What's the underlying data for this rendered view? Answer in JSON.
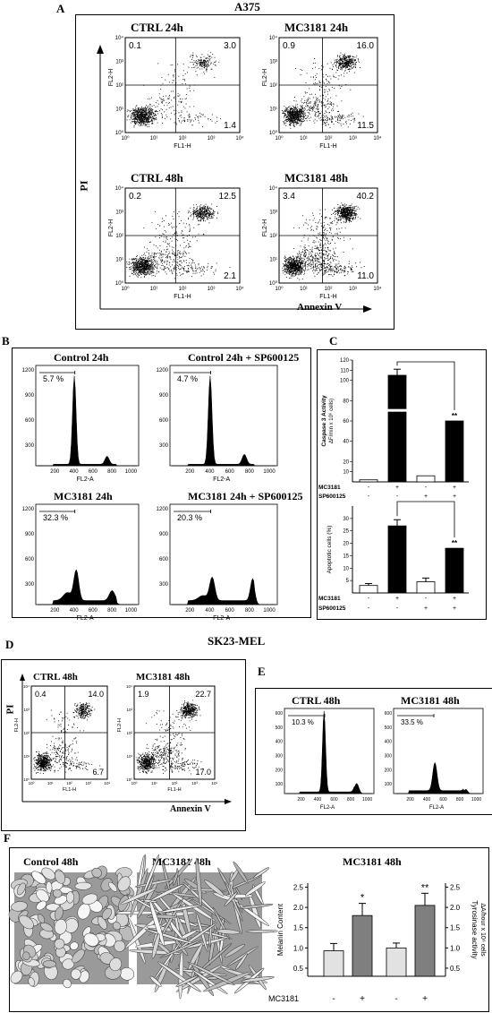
{
  "figure": {
    "panelA": {
      "label": "A",
      "title": "A375",
      "y_axis": "PI",
      "x_axis": "Annexin V",
      "plots": [
        {
          "title": "CTRL 24h",
          "q_ul": "0.1",
          "q_ur": "3.0",
          "q_lr": "1.4",
          "ylabel": "FL2-H",
          "xlabel": "FL1-H",
          "level": 1
        },
        {
          "title": "MC3181 24h",
          "q_ul": "0.9",
          "q_ur": "16.0",
          "q_lr": "11.5",
          "ylabel": "FL2-H",
          "xlabel": "FL1-H",
          "level": 2
        },
        {
          "title": "CTRL 48h",
          "q_ul": "0.2",
          "q_ur": "12.5",
          "q_lr": "2.1",
          "ylabel": "FL2-H",
          "xlabel": "FL1-H",
          "level": 2
        },
        {
          "title": "MC3181 48h",
          "q_ul": "3.4",
          "q_ur": "40.2",
          "q_lr": "11.0",
          "ylabel": "FL2-H",
          "xlabel": "FL1-H",
          "level": 3
        }
      ],
      "ticks": [
        "10⁰",
        "10¹",
        "10²",
        "10³",
        "10⁴"
      ]
    },
    "panelB": {
      "label": "B",
      "xlabel": "FL2-A",
      "y_ticks": [
        "1200",
        "900",
        "600",
        "300"
      ],
      "x_ticks": [
        "200",
        "400",
        "600",
        "800",
        "1000"
      ],
      "histos": [
        {
          "title": "Control 24h",
          "pct": "5.7 %"
        },
        {
          "title": "Control 24h + SP600125",
          "pct": "4.7 %"
        },
        {
          "title": "MC3181 24h",
          "pct": "32.3 %"
        },
        {
          "title": "MC3181 24h + SP600125",
          "pct": "20.3 %"
        }
      ]
    },
    "panelC": {
      "label": "C",
      "caspase": {
        "ylabel1": "Caspase 3 Activity",
        "ylabel2": "ΔF/min x 10⁶ cells)",
        "ticks": [
          "120",
          "110",
          "100",
          "80",
          "60",
          "40",
          "20",
          "10"
        ],
        "values": [
          2,
          105,
          6,
          60
        ],
        "sig": "**"
      },
      "apoptotic": {
        "ylabel": "Apoptotic cells (%)",
        "ticks": [
          "30",
          "25",
          "20",
          "15",
          "10",
          "5"
        ],
        "values": [
          3,
          27,
          4.5,
          18
        ],
        "sig": "**"
      },
      "rows": [
        {
          "name": "MC3181",
          "signs": [
            "-",
            "+",
            "-",
            "+"
          ]
        },
        {
          "name": "SP600125",
          "signs": [
            "-",
            "-",
            "+",
            "+"
          ]
        }
      ]
    },
    "sk23_title": "SK23-MEL",
    "panelD": {
      "label": "D",
      "y_axis": "PI",
      "x_axis": "Annexin V",
      "plots": [
        {
          "title": "CTRL 48h",
          "q_ul": "0.4",
          "q_ur": "14.0",
          "q_lr": "6.7",
          "ylabel": "FL2-H",
          "xlabel": "FL1-H",
          "level": 2
        },
        {
          "title": "MC3181 48h",
          "q_ul": "1.9",
          "q_ur": "22.7",
          "q_lr": "17.0",
          "ylabel": "FL2-H",
          "xlabel": "FL1-H",
          "level": 3
        }
      ]
    },
    "panelE": {
      "label": "E",
      "xlabel": "FL2-A",
      "y_ticks": [
        "600",
        "500",
        "400",
        "300",
        "200",
        "100"
      ],
      "x_ticks": [
        "200",
        "400",
        "600",
        "800",
        "1000"
      ],
      "histos": [
        {
          "title": "CTRL 48h",
          "pct": "10.3 %"
        },
        {
          "title": "MC3181 48h",
          "pct": "33.5 %"
        }
      ]
    },
    "panelF": {
      "label": "F",
      "img1": "Control 48h",
      "img2": "MC3181 48h",
      "chart_title": "MC3181 48h",
      "left_axis": "Melanin Content",
      "right_axis": "Tyrosinase activity",
      "right_axis2": "ΔA/hour x 10⁶ cells",
      "left_ticks": [
        "2.5",
        "2.0",
        "1.5",
        "1.0",
        "0.5"
      ],
      "right_ticks": [
        "2.5",
        "2.0",
        "1.5",
        "1.0",
        "0.5"
      ],
      "melanin": [
        0.93,
        1.8
      ],
      "tyrosinase": [
        1.0,
        2.05
      ],
      "sig1": "*",
      "sig2": "**",
      "row_name": "MC3181",
      "signs": [
        "-",
        "+",
        "-",
        "+"
      ]
    }
  },
  "chart_data": [
    {
      "type": "bar",
      "title": "",
      "ylabel": "Caspase 3 Activity ΔF/min x 10⁶ cells)",
      "categories": [
        "- / -",
        "+ / -",
        "- / +",
        "+ / +"
      ],
      "values": [
        2,
        105,
        6,
        60
      ],
      "ylim": [
        0,
        120
      ]
    },
    {
      "type": "bar",
      "title": "",
      "ylabel": "Apoptotic cells (%)",
      "categories": [
        "- / -",
        "+ / -",
        "- / +",
        "+ / +"
      ],
      "values": [
        3,
        27,
        4.5,
        18
      ],
      "ylim": [
        0,
        30
      ]
    },
    {
      "type": "bar",
      "title": "MC3181 48h",
      "categories": [
        "-",
        "+"
      ],
      "series": [
        {
          "name": "Melanin Content",
          "values": [
            0.93,
            1.8
          ]
        },
        {
          "name": "Tyrosinase activity",
          "values": [
            1.0,
            2.05
          ]
        }
      ],
      "ylim": [
        0,
        2.5
      ]
    }
  ]
}
